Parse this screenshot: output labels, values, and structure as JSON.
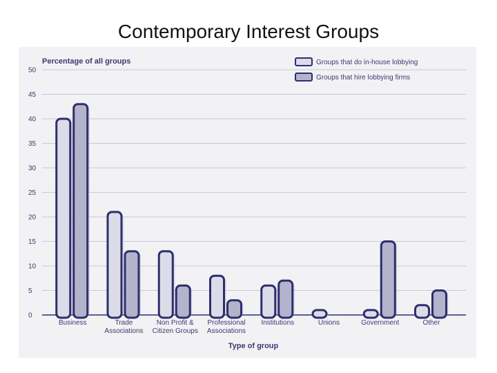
{
  "slide": {
    "title": "Contemporary Interest Groups"
  },
  "colors": {
    "panel": "#f2f1f4",
    "grid": "#c9c8d6",
    "bar_outline": "#2e2e6e",
    "series_fills": [
      "#dcdce8",
      "#b3b4cc"
    ],
    "text": "#3a3a6e"
  },
  "chart_data": {
    "type": "bar",
    "title": "",
    "ylabel": "Percentage of all groups",
    "xlabel": "Type of group",
    "ylim": [
      0,
      50
    ],
    "yticks": [
      0,
      5,
      10,
      15,
      20,
      25,
      30,
      35,
      40,
      45,
      50
    ],
    "grid": true,
    "legend_position": "top-right",
    "categories": [
      [
        "Business"
      ],
      [
        "Trade",
        "Associations"
      ],
      [
        "Non Profit &",
        "Citizen Groups"
      ],
      [
        "Professional",
        "Associations"
      ],
      [
        "Institutions"
      ],
      [
        "Unions"
      ],
      [
        "Government"
      ],
      [
        "Other"
      ]
    ],
    "series": [
      {
        "name": "Groups that do in-house lobbying",
        "values": [
          40,
          21,
          13,
          8,
          6,
          1,
          1,
          2
        ]
      },
      {
        "name": "Groups that hire lobbying firms",
        "values": [
          43,
          13,
          6,
          3,
          7,
          0,
          15,
          5
        ]
      }
    ]
  }
}
